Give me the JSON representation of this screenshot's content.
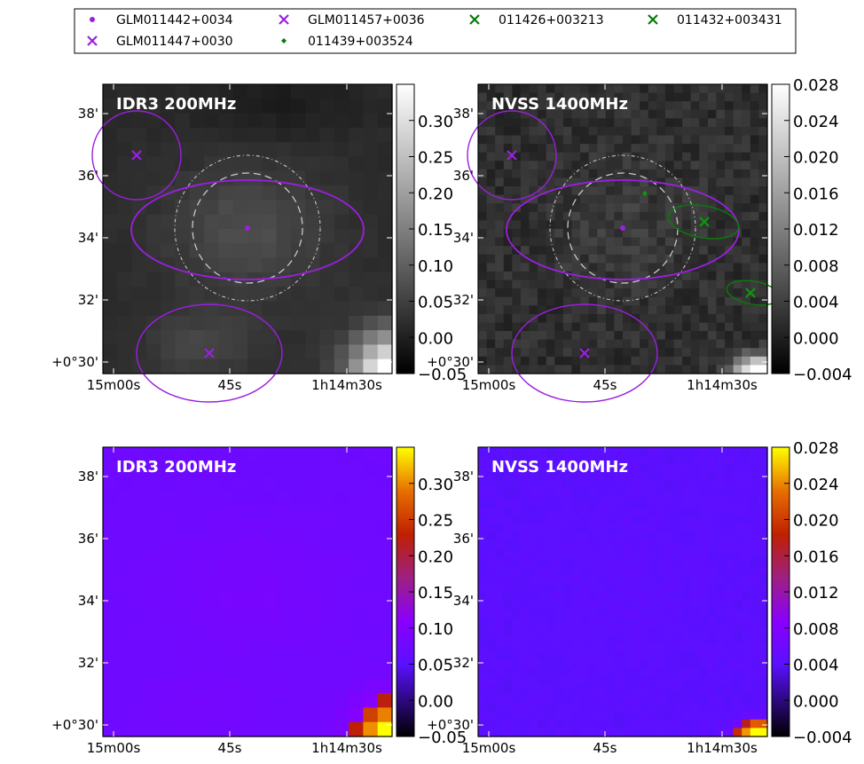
{
  "legend": {
    "entries": [
      {
        "label": "GLM011442+0034",
        "marker": "dot",
        "color": "#9b1fe0"
      },
      {
        "label": "GLM011457+0036",
        "marker": "x",
        "color": "#9b1fe0"
      },
      {
        "label": "011426+003213",
        "marker": "x",
        "color": "#0a7a0a"
      },
      {
        "label": "011432+003431",
        "marker": "x",
        "color": "#0a7a0a"
      },
      {
        "label": "GLM011447+0030",
        "marker": "x",
        "color": "#9b1fe0"
      },
      {
        "label": "011439+003524",
        "marker": "diamond",
        "color": "#0a7a0a"
      }
    ]
  },
  "axes": {
    "x_ticks": [
      "15m00s",
      "45s",
      "1h14m30s"
    ],
    "y_ticks": [
      "38'",
      "36'",
      "34'",
      "32'",
      "+0°30'"
    ]
  },
  "colorbars": {
    "idr3_ticks": [
      "0.30",
      "0.25",
      "0.20",
      "0.15",
      "0.10",
      "0.05",
      "0.00",
      "−0.05"
    ],
    "nvss_ticks": [
      "0.028",
      "0.024",
      "0.020",
      "0.016",
      "0.012",
      "0.008",
      "0.004",
      "0.000",
      "−0.004"
    ]
  },
  "chart_data": [
    {
      "type": "heatmap",
      "title": "IDR3 200MHz",
      "colormap": "gray",
      "clim": [
        -0.05,
        0.35
      ],
      "xlabel": "",
      "ylabel": "",
      "x_ticks": [
        "15m00s",
        "45s",
        "1h14m30s"
      ],
      "y_ticks": [
        "38'",
        "36'",
        "34'",
        "32'",
        "+0°30'"
      ],
      "overlays": [
        "GLM011442+0034",
        "GLM011457+0036",
        "GLM011447+0030"
      ]
    },
    {
      "type": "heatmap",
      "title": "NVSS 1400MHz",
      "colormap": "gray",
      "clim": [
        -0.004,
        0.028
      ],
      "xlabel": "",
      "ylabel": "",
      "x_ticks": [
        "15m00s",
        "45s",
        "1h14m30s"
      ],
      "y_ticks": [
        "38'",
        "36'",
        "34'",
        "32'",
        "+0°30'"
      ],
      "overlays": [
        "GLM011442+0034",
        "GLM011457+0036",
        "GLM011447+0030",
        "011426+003213",
        "011432+003431",
        "011439+003524"
      ]
    },
    {
      "type": "heatmap",
      "title": "IDR3 200MHz",
      "colormap": "gnuplot",
      "clim": [
        -0.05,
        0.35
      ],
      "xlabel": "",
      "ylabel": "",
      "x_ticks": [
        "15m00s",
        "45s",
        "1h14m30s"
      ],
      "y_ticks": [
        "38'",
        "36'",
        "34'",
        "32'",
        "+0°30'"
      ]
    },
    {
      "type": "heatmap",
      "title": "NVSS 1400MHz",
      "colormap": "gnuplot",
      "clim": [
        -0.004,
        0.028
      ],
      "xlabel": "",
      "ylabel": "",
      "x_ticks": [
        "15m00s",
        "45s",
        "1h14m30s"
      ],
      "y_ticks": [
        "38'",
        "36'",
        "34'",
        "32'",
        "+0°30'"
      ]
    }
  ]
}
